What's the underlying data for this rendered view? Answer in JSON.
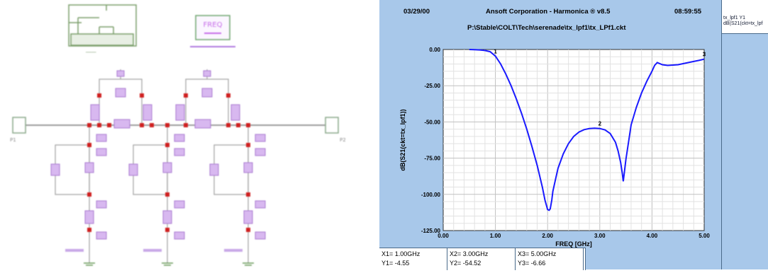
{
  "schematic": {
    "freq_box_label": "FREQ",
    "port_left_label": "P1",
    "port_right_label": "P2"
  },
  "plot": {
    "header_date": "03/29/00",
    "header_app": "Ansoft Corporation - Harmonica ® v8.5",
    "header_time": "08:59:55",
    "header_path": "P:\\Stable\\COLT\\Tech\\serenade\\tx_lpf1\\tx_LPf1.ckt",
    "readouts": [
      {
        "x": "X1= 1.00GHz",
        "y": "Y1= -4.55"
      },
      {
        "x": "X2= 3.00GHz",
        "y": "Y2= -54.52"
      },
      {
        "x": "X3= 5.00GHz",
        "y": "Y3= -6.66"
      }
    ]
  },
  "legend": {
    "line1": "tx_lpf1    Y1",
    "line2": "dB(S21(ckt=tx_lpf"
  },
  "chart_data": {
    "type": "line",
    "xlabel": "FREQ [GHz]",
    "ylabel": "dB(S21(ckt=tx_lpf1))",
    "xlim": [
      0,
      5
    ],
    "ylim": [
      -125,
      0
    ],
    "x_ticks": [
      "0.00",
      "1.00",
      "2.00",
      "3.00",
      "4.00",
      "5.00"
    ],
    "y_ticks": [
      "0.00",
      "-25.00",
      "-50.00",
      "-75.00",
      "-100.00",
      "-125.00"
    ],
    "grid": true,
    "line_color": "#1a1aff",
    "series": [
      {
        "x": [
          0.5,
          0.6,
          0.7,
          0.8,
          0.9,
          1.0,
          1.1,
          1.2,
          1.3,
          1.4,
          1.5,
          1.6,
          1.7,
          1.8,
          1.9,
          1.95,
          2.0,
          2.03,
          2.05,
          2.08,
          2.1,
          2.15,
          2.2,
          2.3,
          2.4,
          2.5,
          2.6,
          2.7,
          2.8,
          2.9,
          3.0,
          3.1,
          3.2,
          3.3,
          3.35,
          3.4,
          3.43,
          3.45,
          3.47,
          3.5,
          3.55,
          3.6,
          3.7,
          3.8,
          3.9,
          4.0,
          4.05,
          4.1,
          4.2,
          4.3,
          4.5,
          4.7,
          4.9,
          5.0
        ],
        "y": [
          0.0,
          -0.1,
          -0.3,
          -0.7,
          -1.5,
          -4.55,
          -10,
          -17,
          -25,
          -34,
          -44,
          -55,
          -67,
          -80,
          -95,
          -104,
          -110.5,
          -111,
          -110,
          -104,
          -98,
          -90,
          -82,
          -72,
          -65,
          -60,
          -57,
          -55.3,
          -54.6,
          -54.3,
          -54.52,
          -55.5,
          -58,
          -64,
          -70,
          -78,
          -85,
          -91,
          -85,
          -76,
          -64,
          -52,
          -40,
          -30,
          -22,
          -15,
          -11,
          -9,
          -10.5,
          -11,
          -10.5,
          -9,
          -7.5,
          -6.66
        ]
      }
    ],
    "markers": [
      {
        "label": "1",
        "x": 1.0,
        "y": -4.55
      },
      {
        "label": "2",
        "x": 3.0,
        "y": -54.52
      },
      {
        "label": "3",
        "x": 5.0,
        "y": -6.66
      }
    ]
  }
}
